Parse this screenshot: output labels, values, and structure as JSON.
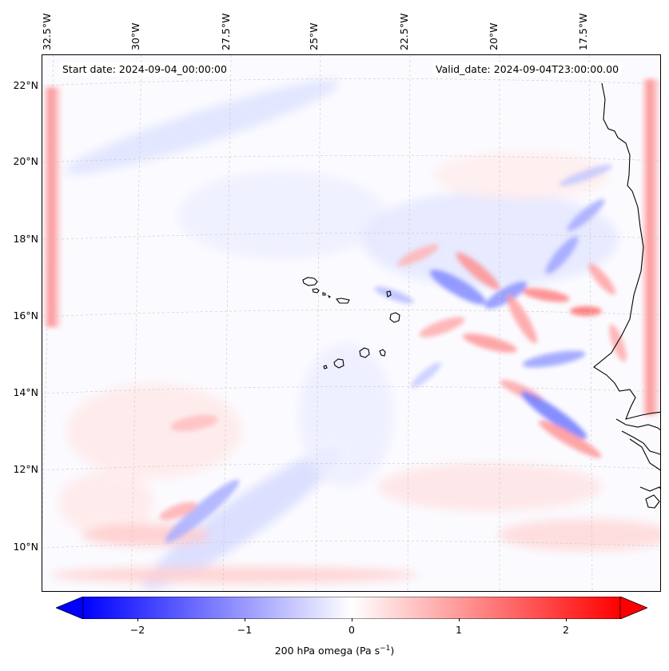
{
  "map": {
    "start_date": "Start date: 2024-09-04_00:00:00",
    "valid_date": "Valid_date: 2024-09-04T23:00:00.00",
    "lon_labels": [
      "32.5°W",
      "30°W",
      "27.5°W",
      "25°W",
      "22.5°W",
      "20°W",
      "17.5°W"
    ],
    "lat_labels": [
      "22°N",
      "20°N",
      "18°N",
      "16°N",
      "14°N",
      "12°N",
      "10°N"
    ],
    "features": [
      "Cape Verde islands",
      "West African coastline"
    ]
  },
  "colorbar": {
    "label_prefix": "200 hPa omega (Pa s",
    "label_sup": "−1",
    "label_suffix": ")",
    "ticks": [
      "−2",
      "−1",
      "0",
      "1",
      "2"
    ],
    "range": [
      -2.7,
      2.7
    ],
    "colors": {
      "negative": "#0000ff",
      "zero": "#ffffff",
      "positive": "#ff0000"
    },
    "extend": "both"
  }
}
